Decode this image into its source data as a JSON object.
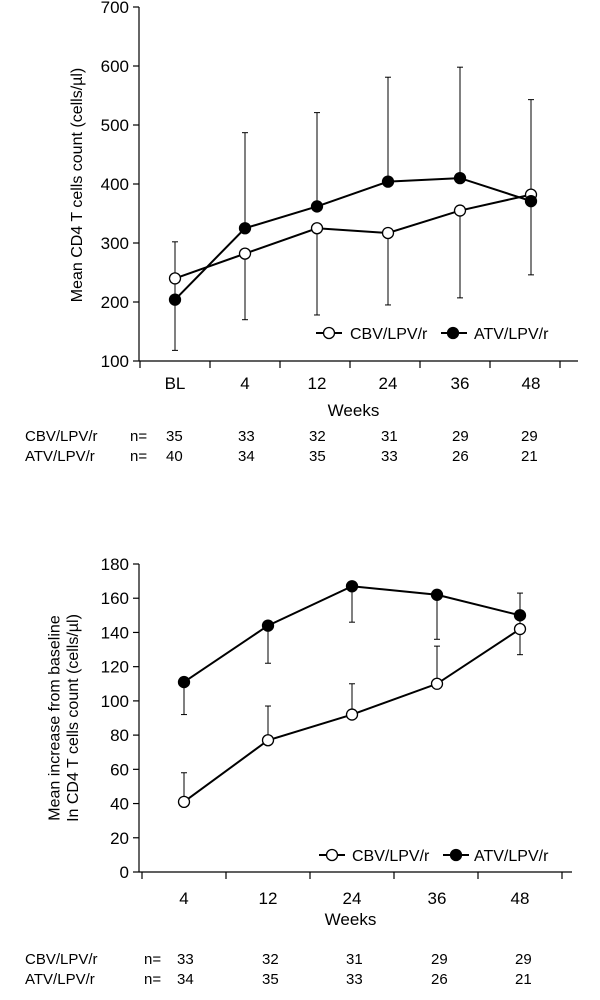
{
  "chart_data": [
    {
      "type": "line",
      "title": "",
      "xlabel": "Weeks",
      "ylabel": "Mean CD4 T cells count (cells/µl)",
      "categories": [
        "BL",
        "4",
        "12",
        "24",
        "36",
        "48"
      ],
      "ylim": [
        100,
        700
      ],
      "yticks": [
        100,
        200,
        300,
        400,
        500,
        600,
        700
      ],
      "grid": false,
      "legend_position": "bottom-right",
      "series": [
        {
          "name": "CBV/LPV/r",
          "marker": "open-circle",
          "values": [
            240,
            282,
            325,
            317,
            355,
            382
          ],
          "error_lower": [
            118,
            170,
            178,
            195,
            207,
            246
          ]
        },
        {
          "name": "ATV/LPV/r",
          "marker": "filled-circle",
          "values": [
            204,
            325,
            362,
            404,
            410,
            371
          ],
          "error_upper": [
            302,
            487,
            521,
            581,
            598,
            543
          ]
        }
      ],
      "n_table": {
        "label": "n=",
        "rows": [
          {
            "name": "CBV/LPV/r",
            "values": [
              "35",
              "33",
              "32",
              "31",
              "29",
              "29"
            ]
          },
          {
            "name": "ATV/LPV/r",
            "values": [
              "40",
              "34",
              "35",
              "33",
              "26",
              "21"
            ]
          }
        ]
      }
    },
    {
      "type": "line",
      "title": "",
      "xlabel": "Weeks",
      "ylabel": [
        "Mean increase from baseline",
        "In CD4 T cells count (cells/µl)"
      ],
      "categories": [
        "4",
        "12",
        "24",
        "36",
        "48"
      ],
      "ylim": [
        0,
        180
      ],
      "yticks": [
        0,
        20,
        40,
        60,
        80,
        100,
        120,
        140,
        160,
        180
      ],
      "grid": false,
      "legend_position": "bottom-right",
      "series": [
        {
          "name": "CBV/LPV/r",
          "marker": "open-circle",
          "values": [
            41,
            77,
            92,
            110,
            142
          ],
          "error_upper": [
            58,
            97,
            110,
            132,
            163
          ]
        },
        {
          "name": "ATV/LPV/r",
          "marker": "filled-circle",
          "values": [
            111,
            144,
            167,
            162,
            150
          ],
          "error_lower": [
            92,
            122,
            146,
            136,
            127
          ]
        }
      ],
      "n_table": {
        "label": "n=",
        "rows": [
          {
            "name": "CBV/LPV/r",
            "values": [
              "33",
              "32",
              "31",
              "29",
              "29"
            ]
          },
          {
            "name": "ATV/LPV/r",
            "values": [
              "34",
              "35",
              "33",
              "26",
              "21"
            ]
          }
        ]
      }
    }
  ]
}
